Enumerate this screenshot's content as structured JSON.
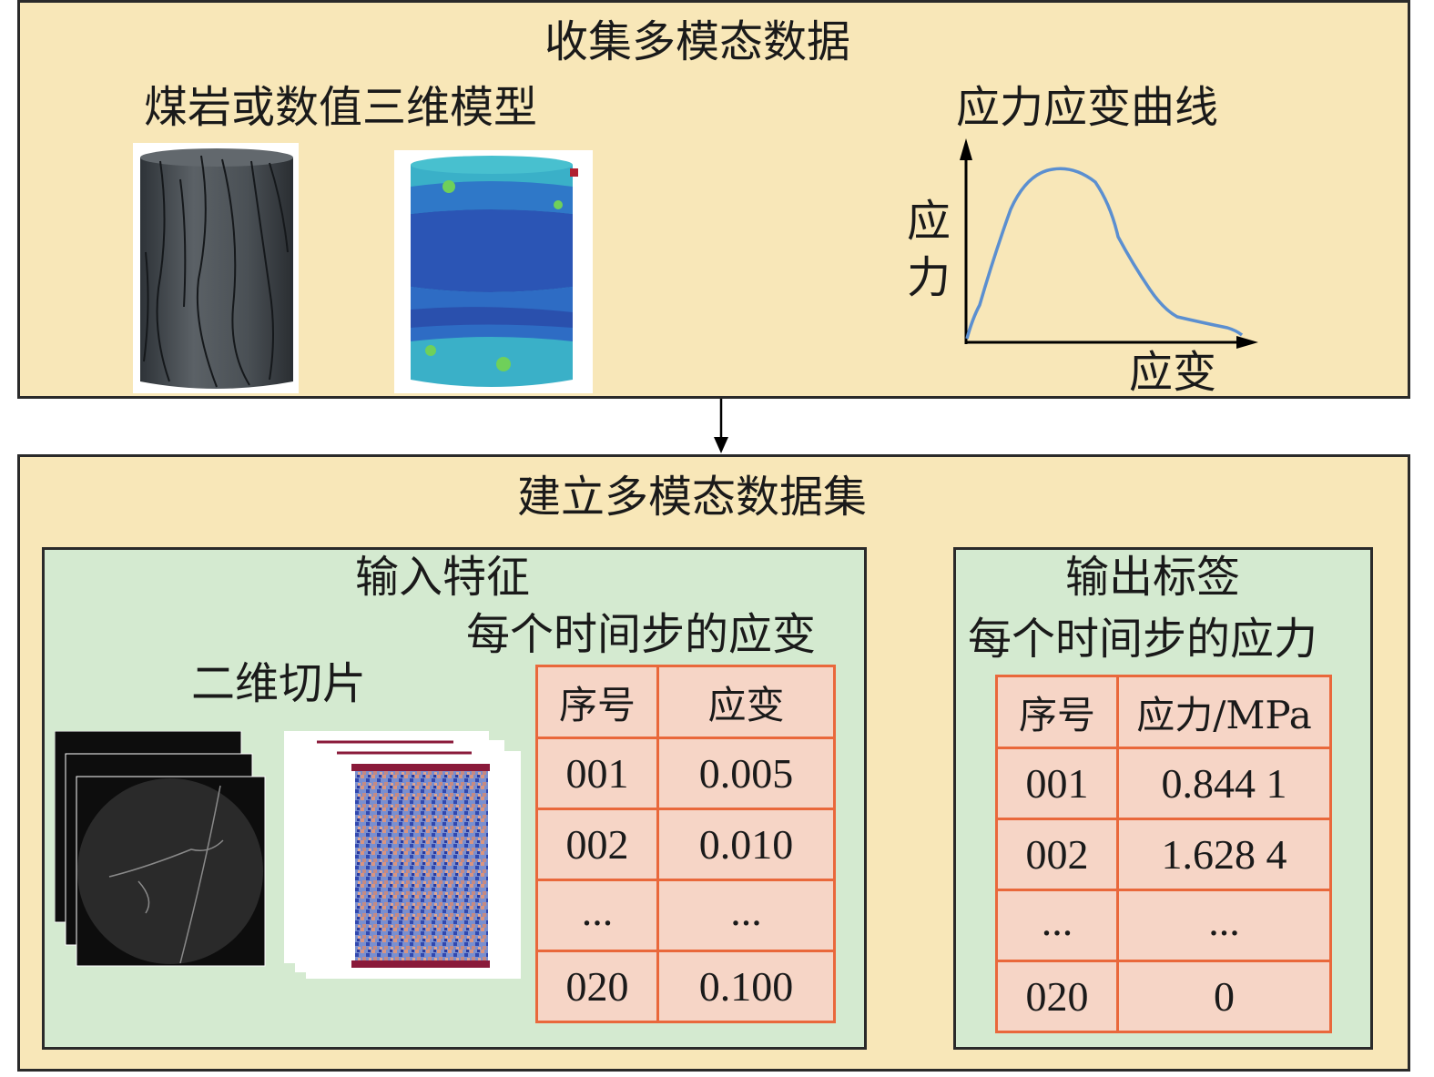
{
  "top_panel": {
    "title": "收集多模态数据",
    "models_label": "煤岩或数值三维模型",
    "curve_label": "应力应变曲线",
    "y_axis_label": "应力",
    "x_axis_label": "应变"
  },
  "bottom_panel": {
    "title": "建立多模态数据集",
    "input": {
      "title": "输入特征",
      "subtitle": "每个时间步的应变",
      "slices_label": "二维切片",
      "headers": [
        "序号",
        "应变"
      ],
      "rows": [
        [
          "001",
          "0.005"
        ],
        [
          "002",
          "0.010"
        ],
        [
          "...",
          "..."
        ],
        [
          "020",
          "0.100"
        ]
      ]
    },
    "output": {
      "title": "输出标签",
      "subtitle": "每个时间步的应力",
      "headers": [
        "序号",
        "应力/MPa"
      ],
      "rows": [
        [
          "001",
          "0.844 1"
        ],
        [
          "002",
          "1.628 4"
        ],
        [
          "...",
          "..."
        ],
        [
          "020",
          "0"
        ]
      ]
    }
  },
  "colors": {
    "panel_bg": "#f8e7b8",
    "inner_bg": "#d4ead0",
    "table_cell": "#f6d5c6",
    "table_border": "#e9683b",
    "curve": "#5b8fd0"
  }
}
